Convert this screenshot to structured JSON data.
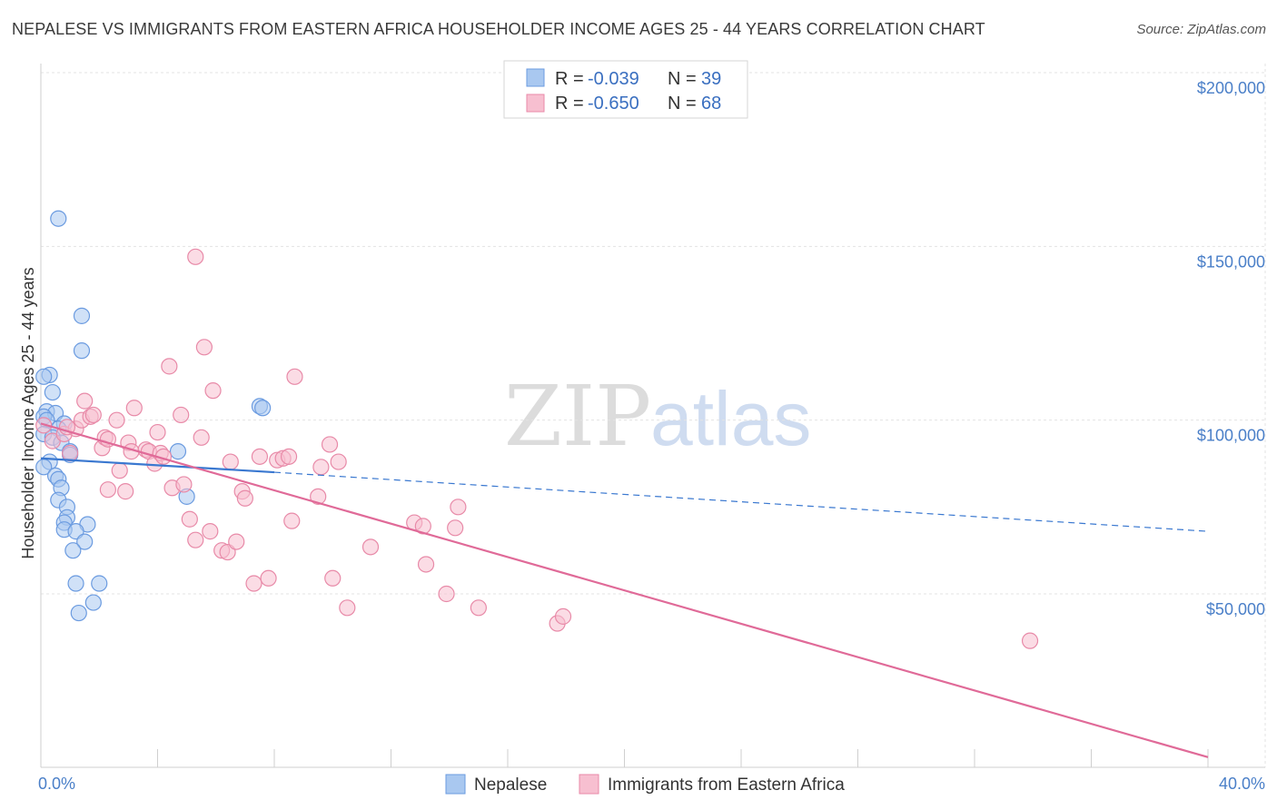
{
  "title": "NEPALESE VS IMMIGRANTS FROM EASTERN AFRICA HOUSEHOLDER INCOME AGES 25 - 44 YEARS CORRELATION CHART",
  "source": "Source: ZipAtlas.com",
  "watermark": {
    "zip": "ZIP",
    "atlas": "atlas"
  },
  "colors": {
    "nepalese_fill": "#a9c8f0",
    "nepalese_stroke": "#6b9be0",
    "nepalese_line": "#3a78d0",
    "eafrica_fill": "#f7bfd0",
    "eafrica_stroke": "#e88aa8",
    "eafrica_line": "#e06a98",
    "grid": "#e3e3e3",
    "tick_label": "#4a7fc8"
  },
  "legend": {
    "rows": [
      {
        "r_label": "R =",
        "r_value": "-0.039",
        "n_label": "N =",
        "n_value": "39"
      },
      {
        "r_label": "R =",
        "r_value": "-0.650",
        "n_label": "N =",
        "n_value": "68"
      }
    ]
  },
  "chart_data": {
    "type": "scatter",
    "title": "NEPALESE VS IMMIGRANTS FROM EASTERN AFRICA HOUSEHOLDER INCOME AGES 25 - 44 YEARS CORRELATION CHART",
    "xlabel": "",
    "ylabel": "Householder Income Ages 25 - 44 years",
    "xlim": [
      0,
      40
    ],
    "ylim": [
      2000,
      210000
    ],
    "x_ticks": [
      {
        "value": 0,
        "label": "0.0%"
      },
      {
        "value": 40,
        "label": "40.0%"
      }
    ],
    "y_ticks": [
      {
        "value": 50000,
        "label": "$50,000"
      },
      {
        "value": 100000,
        "label": "$100,000"
      },
      {
        "value": 150000,
        "label": "$150,000"
      },
      {
        "value": 200000,
        "label": "$200,000"
      }
    ],
    "grid": true,
    "legend_position": "top-center",
    "series": [
      {
        "name": "Nepalese",
        "r": -0.039,
        "n": 39,
        "trend": {
          "x": [
            0,
            8,
            40
          ],
          "y": [
            89000,
            85000,
            68000
          ],
          "solid_until": 8
        },
        "points": [
          [
            0.6,
            158000
          ],
          [
            1.4,
            130000
          ],
          [
            1.4,
            120000
          ],
          [
            0.3,
            113000
          ],
          [
            0.1,
            112500
          ],
          [
            0.4,
            108000
          ],
          [
            0.2,
            102500
          ],
          [
            0.5,
            102000
          ],
          [
            0.1,
            101000
          ],
          [
            0.2,
            100000
          ],
          [
            0.8,
            99000
          ],
          [
            0.6,
            97500
          ],
          [
            0.1,
            96000
          ],
          [
            0.4,
            95000
          ],
          [
            0.7,
            93500
          ],
          [
            1.0,
            91000
          ],
          [
            1.0,
            90000
          ],
          [
            0.3,
            88000
          ],
          [
            0.1,
            86500
          ],
          [
            0.5,
            84000
          ],
          [
            0.6,
            83000
          ],
          [
            0.7,
            80500
          ],
          [
            0.6,
            77000
          ],
          [
            0.9,
            75000
          ],
          [
            0.9,
            72000
          ],
          [
            0.8,
            70500
          ],
          [
            1.6,
            70000
          ],
          [
            0.8,
            68500
          ],
          [
            1.2,
            68000
          ],
          [
            1.5,
            65000
          ],
          [
            1.1,
            62500
          ],
          [
            1.2,
            53000
          ],
          [
            2.0,
            53000
          ],
          [
            1.8,
            47500
          ],
          [
            1.3,
            44500
          ],
          [
            4.7,
            91000
          ],
          [
            5.0,
            78000
          ],
          [
            7.5,
            104000
          ],
          [
            7.6,
            103500
          ]
        ]
      },
      {
        "name": "Immigrants from Eastern Africa",
        "r": -0.65,
        "n": 68,
        "trend": {
          "x": [
            0,
            40
          ],
          "y": [
            99000,
            3000
          ]
        },
        "points": [
          [
            0.1,
            98500
          ],
          [
            0.4,
            94000
          ],
          [
            0.8,
            96000
          ],
          [
            1.2,
            97500
          ],
          [
            1.4,
            100000
          ],
          [
            1.5,
            105500
          ],
          [
            1.7,
            101000
          ],
          [
            1.8,
            101500
          ],
          [
            2.1,
            92000
          ],
          [
            2.2,
            95000
          ],
          [
            2.3,
            94500
          ],
          [
            2.6,
            100000
          ],
          [
            2.7,
            85500
          ],
          [
            2.9,
            79500
          ],
          [
            3.0,
            93500
          ],
          [
            3.1,
            91000
          ],
          [
            3.2,
            103500
          ],
          [
            3.6,
            91500
          ],
          [
            3.7,
            91000
          ],
          [
            3.9,
            87500
          ],
          [
            4.0,
            96500
          ],
          [
            4.1,
            90500
          ],
          [
            4.2,
            89500
          ],
          [
            4.4,
            115500
          ],
          [
            4.5,
            80500
          ],
          [
            4.8,
            101500
          ],
          [
            4.9,
            81500
          ],
          [
            5.1,
            71500
          ],
          [
            5.3,
            65500
          ],
          [
            5.3,
            147000
          ],
          [
            5.5,
            95000
          ],
          [
            5.6,
            121000
          ],
          [
            5.8,
            68000
          ],
          [
            5.9,
            108500
          ],
          [
            6.2,
            62500
          ],
          [
            6.4,
            62000
          ],
          [
            6.5,
            88000
          ],
          [
            6.7,
            65000
          ],
          [
            6.9,
            79500
          ],
          [
            7.0,
            77500
          ],
          [
            7.3,
            53000
          ],
          [
            7.5,
            89500
          ],
          [
            7.8,
            54500
          ],
          [
            8.1,
            88500
          ],
          [
            8.3,
            89000
          ],
          [
            8.5,
            89500
          ],
          [
            8.6,
            71000
          ],
          [
            8.7,
            112500
          ],
          [
            9.5,
            78000
          ],
          [
            9.6,
            86500
          ],
          [
            9.9,
            93000
          ],
          [
            10.0,
            54500
          ],
          [
            10.2,
            88000
          ],
          [
            10.5,
            46000
          ],
          [
            11.3,
            63500
          ],
          [
            12.8,
            70500
          ],
          [
            13.1,
            69500
          ],
          [
            13.2,
            58500
          ],
          [
            13.9,
            50000
          ],
          [
            14.3,
            75000
          ],
          [
            14.2,
            69000
          ],
          [
            15.0,
            46000
          ],
          [
            17.7,
            41500
          ],
          [
            17.9,
            43500
          ],
          [
            33.9,
            36500
          ],
          [
            2.3,
            80000
          ],
          [
            0.9,
            98000
          ],
          [
            1.0,
            90500
          ]
        ]
      }
    ]
  }
}
